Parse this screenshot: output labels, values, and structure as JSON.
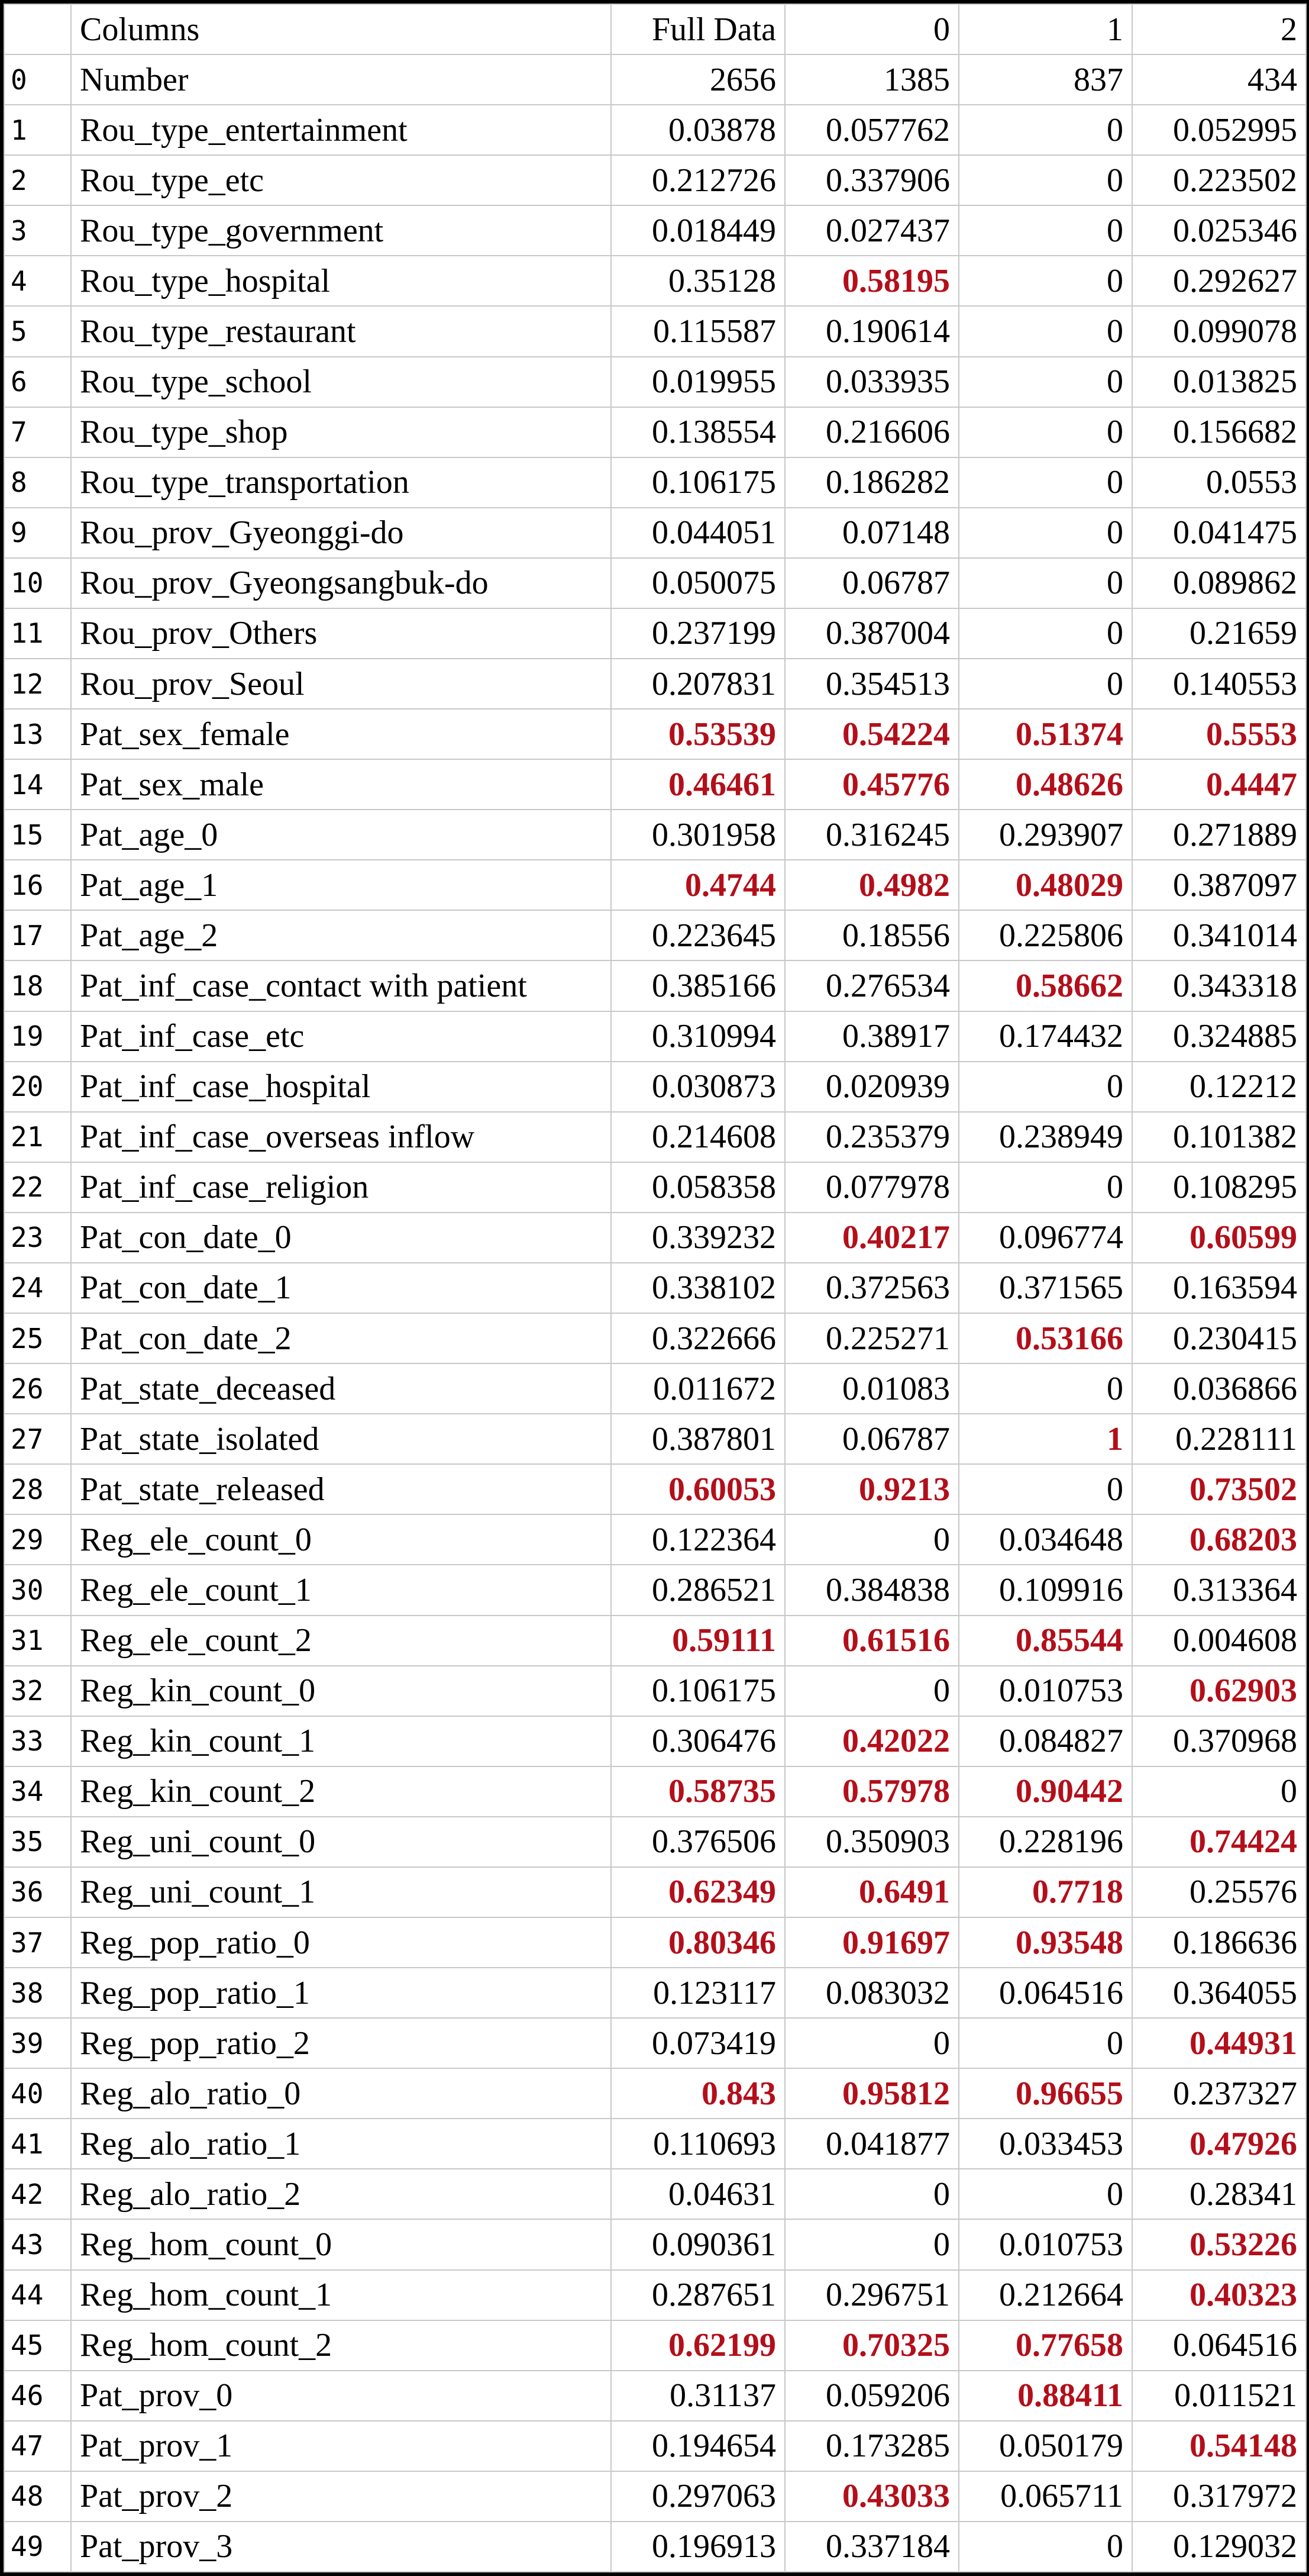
{
  "highlight_color": "#b30f1a",
  "header": {
    "index": "",
    "columns": "Columns",
    "full": "Full Data",
    "c0": "0",
    "c1": "1",
    "c2": "2"
  },
  "rows": [
    {
      "idx": "0",
      "name": "Number",
      "full": "2656",
      "c0": "1385",
      "c1": "837",
      "c2": "434",
      "hl": []
    },
    {
      "idx": "1",
      "name": "Rou_type_entertainment",
      "full": "0.03878",
      "c0": "0.057762",
      "c1": "0",
      "c2": "0.052995",
      "hl": []
    },
    {
      "idx": "2",
      "name": "Rou_type_etc",
      "full": "0.212726",
      "c0": "0.337906",
      "c1": "0",
      "c2": "0.223502",
      "hl": []
    },
    {
      "idx": "3",
      "name": "Rou_type_government",
      "full": "0.018449",
      "c0": "0.027437",
      "c1": "0",
      "c2": "0.025346",
      "hl": []
    },
    {
      "idx": "4",
      "name": "Rou_type_hospital",
      "full": "0.35128",
      "c0": "0.58195",
      "c1": "0",
      "c2": "0.292627",
      "hl": [
        "c0"
      ]
    },
    {
      "idx": "5",
      "name": "Rou_type_restaurant",
      "full": "0.115587",
      "c0": "0.190614",
      "c1": "0",
      "c2": "0.099078",
      "hl": []
    },
    {
      "idx": "6",
      "name": "Rou_type_school",
      "full": "0.019955",
      "c0": "0.033935",
      "c1": "0",
      "c2": "0.013825",
      "hl": []
    },
    {
      "idx": "7",
      "name": "Rou_type_shop",
      "full": "0.138554",
      "c0": "0.216606",
      "c1": "0",
      "c2": "0.156682",
      "hl": []
    },
    {
      "idx": "8",
      "name": "Rou_type_transportation",
      "full": "0.106175",
      "c0": "0.186282",
      "c1": "0",
      "c2": "0.0553",
      "hl": []
    },
    {
      "idx": "9",
      "name": "Rou_prov_Gyeonggi-do",
      "full": "0.044051",
      "c0": "0.07148",
      "c1": "0",
      "c2": "0.041475",
      "hl": []
    },
    {
      "idx": "10",
      "name": "Rou_prov_Gyeongsangbuk-do",
      "full": "0.050075",
      "c0": "0.06787",
      "c1": "0",
      "c2": "0.089862",
      "hl": []
    },
    {
      "idx": "11",
      "name": "Rou_prov_Others",
      "full": "0.237199",
      "c0": "0.387004",
      "c1": "0",
      "c2": "0.21659",
      "hl": []
    },
    {
      "idx": "12",
      "name": "Rou_prov_Seoul",
      "full": "0.207831",
      "c0": "0.354513",
      "c1": "0",
      "c2": "0.140553",
      "hl": []
    },
    {
      "idx": "13",
      "name": "Pat_sex_female",
      "full": "0.53539",
      "c0": "0.54224",
      "c1": "0.51374",
      "c2": "0.5553",
      "hl": [
        "full",
        "c0",
        "c1",
        "c2"
      ]
    },
    {
      "idx": "14",
      "name": "Pat_sex_male",
      "full": "0.46461",
      "c0": "0.45776",
      "c1": "0.48626",
      "c2": "0.4447",
      "hl": [
        "full",
        "c0",
        "c1",
        "c2"
      ]
    },
    {
      "idx": "15",
      "name": "Pat_age_0",
      "full": "0.301958",
      "c0": "0.316245",
      "c1": "0.293907",
      "c2": "0.271889",
      "hl": []
    },
    {
      "idx": "16",
      "name": "Pat_age_1",
      "full": "0.4744",
      "c0": "0.4982",
      "c1": "0.48029",
      "c2": "0.387097",
      "hl": [
        "full",
        "c0",
        "c1"
      ]
    },
    {
      "idx": "17",
      "name": "Pat_age_2",
      "full": "0.223645",
      "c0": "0.18556",
      "c1": "0.225806",
      "c2": "0.341014",
      "hl": []
    },
    {
      "idx": "18",
      "name": "Pat_inf_case_contact with patient",
      "full": "0.385166",
      "c0": "0.276534",
      "c1": "0.58662",
      "c2": "0.343318",
      "hl": [
        "c1"
      ]
    },
    {
      "idx": "19",
      "name": "Pat_inf_case_etc",
      "full": "0.310994",
      "c0": "0.38917",
      "c1": "0.174432",
      "c2": "0.324885",
      "hl": []
    },
    {
      "idx": "20",
      "name": "Pat_inf_case_hospital",
      "full": "0.030873",
      "c0": "0.020939",
      "c1": "0",
      "c2": "0.12212",
      "hl": []
    },
    {
      "idx": "21",
      "name": "Pat_inf_case_overseas inflow",
      "full": "0.214608",
      "c0": "0.235379",
      "c1": "0.238949",
      "c2": "0.101382",
      "hl": []
    },
    {
      "idx": "22",
      "name": "Pat_inf_case_religion",
      "full": "0.058358",
      "c0": "0.077978",
      "c1": "0",
      "c2": "0.108295",
      "hl": []
    },
    {
      "idx": "23",
      "name": "Pat_con_date_0",
      "full": "0.339232",
      "c0": "0.40217",
      "c1": "0.096774",
      "c2": "0.60599",
      "hl": [
        "c0",
        "c2"
      ]
    },
    {
      "idx": "24",
      "name": "Pat_con_date_1",
      "full": "0.338102",
      "c0": "0.372563",
      "c1": "0.371565",
      "c2": "0.163594",
      "hl": []
    },
    {
      "idx": "25",
      "name": "Pat_con_date_2",
      "full": "0.322666",
      "c0": "0.225271",
      "c1": "0.53166",
      "c2": "0.230415",
      "hl": [
        "c1"
      ]
    },
    {
      "idx": "26",
      "name": "Pat_state_deceased",
      "full": "0.011672",
      "c0": "0.01083",
      "c1": "0",
      "c2": "0.036866",
      "hl": []
    },
    {
      "idx": "27",
      "name": "Pat_state_isolated",
      "full": "0.387801",
      "c0": "0.06787",
      "c1": "1",
      "c2": "0.228111",
      "hl": [
        "c1"
      ]
    },
    {
      "idx": "28",
      "name": "Pat_state_released",
      "full": "0.60053",
      "c0": "0.9213",
      "c1": "0",
      "c2": "0.73502",
      "hl": [
        "full",
        "c0",
        "c2"
      ]
    },
    {
      "idx": "29",
      "name": "Reg_ele_count_0",
      "full": "0.122364",
      "c0": "0",
      "c1": "0.034648",
      "c2": "0.68203",
      "hl": [
        "c2"
      ]
    },
    {
      "idx": "30",
      "name": "Reg_ele_count_1",
      "full": "0.286521",
      "c0": "0.384838",
      "c1": "0.109916",
      "c2": "0.313364",
      "hl": []
    },
    {
      "idx": "31",
      "name": "Reg_ele_count_2",
      "full": "0.59111",
      "c0": "0.61516",
      "c1": "0.85544",
      "c2": "0.004608",
      "hl": [
        "full",
        "c0",
        "c1"
      ]
    },
    {
      "idx": "32",
      "name": "Reg_kin_count_0",
      "full": "0.106175",
      "c0": "0",
      "c1": "0.010753",
      "c2": "0.62903",
      "hl": [
        "c2"
      ]
    },
    {
      "idx": "33",
      "name": "Reg_kin_count_1",
      "full": "0.306476",
      "c0": "0.42022",
      "c1": "0.084827",
      "c2": "0.370968",
      "hl": [
        "c0"
      ]
    },
    {
      "idx": "34",
      "name": "Reg_kin_count_2",
      "full": "0.58735",
      "c0": "0.57978",
      "c1": "0.90442",
      "c2": "0",
      "hl": [
        "full",
        "c0",
        "c1"
      ]
    },
    {
      "idx": "35",
      "name": "Reg_uni_count_0",
      "full": "0.376506",
      "c0": "0.350903",
      "c1": "0.228196",
      "c2": "0.74424",
      "hl": [
        "c2"
      ]
    },
    {
      "idx": "36",
      "name": "Reg_uni_count_1",
      "full": "0.62349",
      "c0": "0.6491",
      "c1": "0.7718",
      "c2": "0.25576",
      "hl": [
        "full",
        "c0",
        "c1"
      ]
    },
    {
      "idx": "37",
      "name": "Reg_pop_ratio_0",
      "full": "0.80346",
      "c0": "0.91697",
      "c1": "0.93548",
      "c2": "0.186636",
      "hl": [
        "full",
        "c0",
        "c1"
      ]
    },
    {
      "idx": "38",
      "name": "Reg_pop_ratio_1",
      "full": "0.123117",
      "c0": "0.083032",
      "c1": "0.064516",
      "c2": "0.364055",
      "hl": []
    },
    {
      "idx": "39",
      "name": "Reg_pop_ratio_2",
      "full": "0.073419",
      "c0": "0",
      "c1": "0",
      "c2": "0.44931",
      "hl": [
        "c2"
      ]
    },
    {
      "idx": "40",
      "name": "Reg_alo_ratio_0",
      "full": "0.843",
      "c0": "0.95812",
      "c1": "0.96655",
      "c2": "0.237327",
      "hl": [
        "full",
        "c0",
        "c1"
      ]
    },
    {
      "idx": "41",
      "name": "Reg_alo_ratio_1",
      "full": "0.110693",
      "c0": "0.041877",
      "c1": "0.033453",
      "c2": "0.47926",
      "hl": [
        "c2"
      ]
    },
    {
      "idx": "42",
      "name": "Reg_alo_ratio_2",
      "full": "0.04631",
      "c0": "0",
      "c1": "0",
      "c2": "0.28341",
      "hl": []
    },
    {
      "idx": "43",
      "name": "Reg_hom_count_0",
      "full": "0.090361",
      "c0": "0",
      "c1": "0.010753",
      "c2": "0.53226",
      "hl": [
        "c2"
      ]
    },
    {
      "idx": "44",
      "name": "Reg_hom_count_1",
      "full": "0.287651",
      "c0": "0.296751",
      "c1": "0.212664",
      "c2": "0.40323",
      "hl": [
        "c2"
      ]
    },
    {
      "idx": "45",
      "name": "Reg_hom_count_2",
      "full": "0.62199",
      "c0": "0.70325",
      "c1": "0.77658",
      "c2": "0.064516",
      "hl": [
        "full",
        "c0",
        "c1"
      ]
    },
    {
      "idx": "46",
      "name": "Pat_prov_0",
      "full": "0.31137",
      "c0": "0.059206",
      "c1": "0.88411",
      "c2": "0.011521",
      "hl": [
        "c1"
      ]
    },
    {
      "idx": "47",
      "name": "Pat_prov_1",
      "full": "0.194654",
      "c0": "0.173285",
      "c1": "0.050179",
      "c2": "0.54148",
      "hl": [
        "c2"
      ]
    },
    {
      "idx": "48",
      "name": "Pat_prov_2",
      "full": "0.297063",
      "c0": "0.43033",
      "c1": "0.065711",
      "c2": "0.317972",
      "hl": [
        "c0"
      ]
    },
    {
      "idx": "49",
      "name": "Pat_prov_3",
      "full": "0.196913",
      "c0": "0.337184",
      "c1": "0",
      "c2": "0.129032",
      "hl": []
    }
  ]
}
